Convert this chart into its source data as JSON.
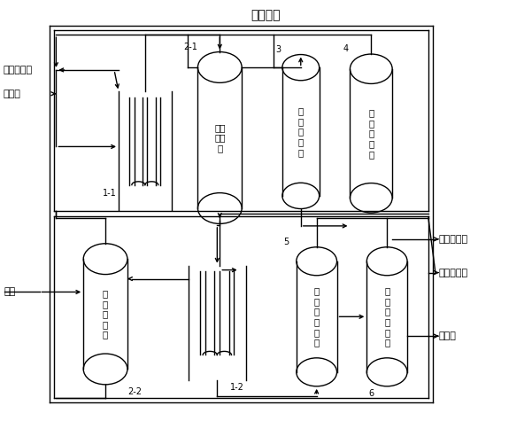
{
  "title": "循环甲醇",
  "bg_color": "#ffffff",
  "line_color": "#000000",
  "figw": 6.01,
  "figh": 4.75,
  "dpi": 100,
  "font_size_title": 10,
  "font_size_label": 8,
  "font_size_small": 7,
  "labels_left": [
    "碳酸丙烯酯",
    "催化剂"
  ],
  "labels_right": [
    "碳酸二甲酯",
    "水及轻组分",
    "丙二醇"
  ],
  "label_methanol": "甲醇",
  "col_nums": [
    "2-1",
    "3",
    "4",
    "2-2",
    "5",
    "6"
  ],
  "reactor_ids": [
    "1-1",
    "1-2"
  ],
  "col_labels": [
    "产物\n分离\n塔",
    "加\n压\n分\n离\n塔",
    "常\n压\n分\n离\n塔",
    "甲\n醇\n回\n收\n塔",
    "丙\n二\n醇\n脱\n轻\n塔",
    "丙\n二\n醇\n精\n馏\n塔"
  ]
}
